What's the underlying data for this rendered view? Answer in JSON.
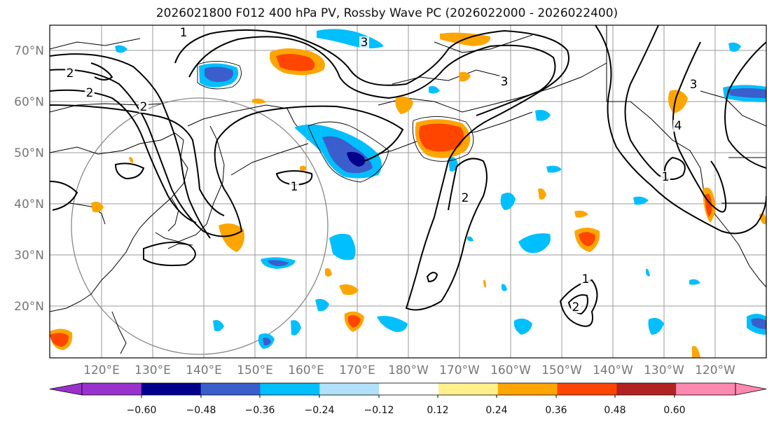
{
  "title": "2026021800 F012 400 hPa PV, Rossby Wave PC (2026022000 - 2026022400)",
  "lat_labels": [
    "70°N",
    "60°N",
    "50°N",
    "40°N",
    "30°N",
    "20°N"
  ],
  "lon_labels": [
    "120°E",
    "130°E",
    "140°E",
    "150°E",
    "160°E",
    "170°E",
    "180°W",
    "170°W",
    "160°W",
    "150°W",
    "140°W",
    "130°W",
    "120°W"
  ],
  "contour_labels": [
    "1",
    "2",
    "2",
    "2",
    "2",
    "3",
    "3",
    "3",
    "1",
    "4",
    "2",
    "1",
    "1"
  ],
  "colorbar": {
    "tick_labels": [
      "−0.60",
      "−0.48",
      "−0.36",
      "−0.24",
      "−0.12",
      "0.12",
      "0.24",
      "0.36",
      "0.48",
      "0.60"
    ],
    "colors": [
      "#9932cc",
      "#00008b",
      "#3a5fcd",
      "#00bfff",
      "#b0e0fa",
      "#ffffff",
      "#fff08c",
      "#ffa500",
      "#ff4500",
      "#b22222",
      "#ff88b0"
    ]
  }
}
